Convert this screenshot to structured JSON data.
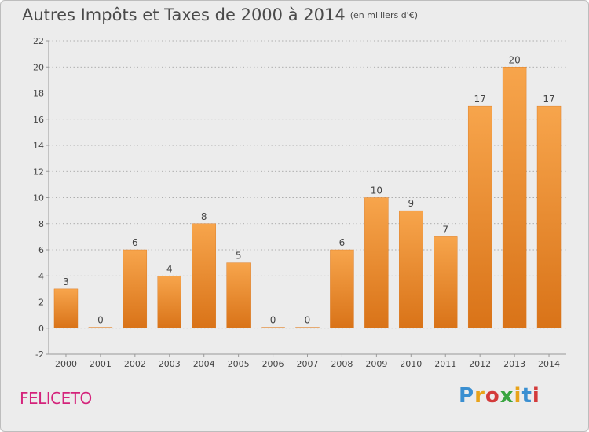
{
  "title": "Autres Impôts et Taxes de 2000 à 2014",
  "subtitle": "(en milliers d'€)",
  "commune": "FELICETO",
  "logo": {
    "letters": [
      "P",
      "r",
      "o",
      "x",
      "i",
      "t",
      "i"
    ],
    "colors": [
      "#3a8fd1",
      "#e8a31a",
      "#d33b3b",
      "#3aa541",
      "#e8a31a",
      "#3a8fd1",
      "#d33b3b"
    ]
  },
  "colors": {
    "bar_top": "#f7a54c",
    "bar_bottom": "#d97318",
    "axis": "#999999",
    "grid": "#999999"
  },
  "chart_data": {
    "type": "bar",
    "categories": [
      "2000",
      "2001",
      "2002",
      "2003",
      "2004",
      "2005",
      "2006",
      "2007",
      "2008",
      "2009",
      "2010",
      "2011",
      "2012",
      "2013",
      "2014"
    ],
    "values": [
      3,
      0,
      6,
      4,
      8,
      5,
      0,
      0,
      6,
      10,
      9,
      7,
      17,
      20,
      17
    ],
    "ylim": [
      -2,
      22
    ],
    "yticks": [
      -2,
      0,
      2,
      4,
      6,
      8,
      10,
      12,
      14,
      16,
      18,
      20,
      22
    ],
    "grid": true,
    "title": "Autres Impôts et Taxes de 2000 à 2014",
    "unit": "(en milliers d'€)"
  }
}
